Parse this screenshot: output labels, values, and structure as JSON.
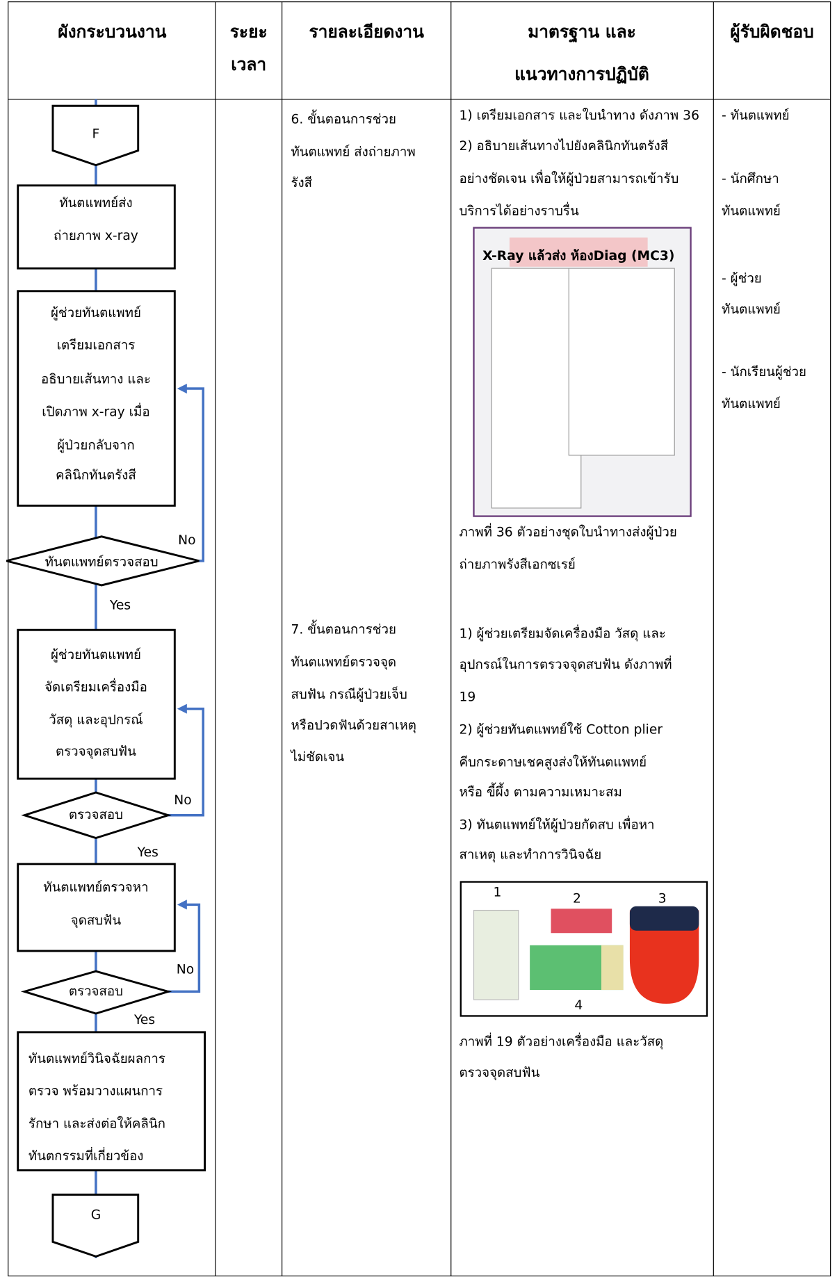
{
  "header": {
    "columns": [
      [
        "ผังกระบวนงาน"
      ],
      [
        "ระยะ",
        "เวลา"
      ],
      [
        "รายละเอียดงาน"
      ],
      [
        "มาตรฐาน และ",
        "แนวทางการปฏิบัติ"
      ],
      [
        "ผู้รับผิดชอบ"
      ]
    ]
  },
  "flowchart": {
    "nodes": [
      {
        "shape": "connector",
        "lines": [
          "F"
        ]
      },
      {
        "shape": "process",
        "lines": [
          "ทันตแพทย์ส่ง",
          "ถ่ายภาพ x-ray"
        ]
      },
      {
        "shape": "process",
        "lines": [
          "ผู้ช่วยทันตแพทย์",
          "เตรียมเอกสาร",
          "อธิบายเส้นทาง และ",
          "เปิดภาพ x-ray เมื่อ",
          "ผู้ป่วยกลับจาก",
          "คลินิกทันตรังสี"
        ]
      },
      {
        "shape": "decision",
        "lines": [
          "ทันตแพทย์ตรวจสอบ"
        ]
      },
      {
        "shape": "process",
        "lines": [
          "ผู้ช่วยทันตแพทย์",
          "จัดเตรียมเครื่องมือ",
          "วัสดุ และอุปกรณ์",
          "ตรวจจุดสบฟัน"
        ]
      },
      {
        "shape": "decision",
        "lines": [
          "ตรวจสอบ"
        ]
      },
      {
        "shape": "process",
        "lines": [
          "ทันตแพทย์ตรวจหา",
          "จุดสบฟัน"
        ]
      },
      {
        "shape": "decision",
        "lines": [
          "ตรวจสอบ"
        ]
      },
      {
        "shape": "process",
        "lines": [
          "ทันตแพทย์วินิจฉัยผลการ",
          "ตรวจ พร้อมวางแผนการ",
          "รักษา และส่งต่อให้คลินิก",
          "ทันตกรรมที่เกี่ยวข้อง"
        ]
      },
      {
        "shape": "connector",
        "lines": [
          "G"
        ]
      }
    ],
    "edge_labels": [
      "No",
      "Yes",
      "No",
      "Yes",
      "No",
      "Yes"
    ]
  },
  "details": [
    [
      "6. ขั้นตอนการช่วย",
      "ทันตแพทย์ ส่งถ่ายภาพ",
      "รังสี"
    ],
    [
      "7. ขั้นตอนการช่วย",
      "ทันตแพทย์ตรวจจุด",
      "สบฟัน กรณีผู้ป่วยเจ็บ",
      "หรือปวดฟันด้วยสาเหตุ",
      "ไม่ชัดเจน"
    ]
  ],
  "standards": {
    "lines": [
      "1) เตรียมเอกสาร และใบนำทาง ดังภาพ 36",
      "2) อธิบายเส้นทางไปยังคลินิกทันตรังสี",
      "อย่างชัดเจน เพื่อให้ผู้ป่วยสามารถเข้ารับ",
      "บริการได้อย่างราบรื่น",
      "ภาพที่ 36 ตัวอย่างชุดใบนำทางส่งผู้ป่วย",
      "ถ่ายภาพรังสีเอกซเรย์",
      "1) ผู้ช่วยเตรียมจัดเครื่องมือ วัสดุ และ",
      "อุปกรณ์ในการตรวจจุดสบฟัน ดังภาพที่",
      "19",
      "2) ผู้ช่วยทันตแพทย์ใช้ Cotton plier",
      "คีบกระดาษเชคสูงส่งให้ทันตแพทย์",
      "หรือ ขี้ผึ้ง ตามความเหมาะสม",
      "3) ทันตแพทย์ให้ผู้ป่วยกัดสบ เพื่อหา",
      "สาเหตุ และทำการวินิจฉัย",
      "ภาพที่ 19 ตัวอย่างเครื่องมือ และวัสดุ",
      "ตรวจจุดสบฟัน"
    ],
    "image_36_label": "X-Ray แล้วส่ง ห้องDiag (MC3)",
    "image_19_labels": [
      "1",
      "2",
      "3",
      "4"
    ]
  },
  "responsible": [
    "- ทันตแพทย์",
    "- นักศึกษา",
    "ทันตแพทย์",
    "- ผู้ช่วย",
    "ทันตแพทย์",
    "- นักเรียนผู้ช่วย",
    "ทันตแพทย์"
  ]
}
